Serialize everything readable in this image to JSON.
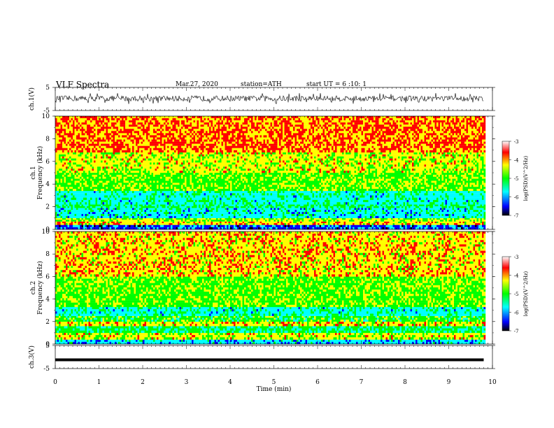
{
  "header": {
    "title": "VLF Spectra",
    "date": "Mar.27, 2020",
    "station": "station=ATH",
    "start": "start UT = 6 :10: 1"
  },
  "chart_data": [
    {
      "type": "line",
      "panel": "ch1-waveform",
      "ylabel": "ch.1(V)",
      "ylim": [
        -5,
        5
      ],
      "y_ticks": [
        "5",
        "-5"
      ],
      "x_range_min": [
        0,
        9.8
      ],
      "baseline_v": 0.2,
      "typical_amplitude_v": 1.2,
      "spike_amplitude_v": 2.5
    },
    {
      "type": "heatmap",
      "panel": "ch1-spectrogram",
      "ylabel": "Frequency (kHz)",
      "channel_label": "ch.1",
      "ylim": [
        0,
        10
      ],
      "y_ticks": [
        "0",
        "2",
        "4",
        "6",
        "8",
        "10"
      ],
      "x_range_min": [
        0,
        9.8
      ],
      "colorbar": {
        "label": "log(PSD)(V^2/Hz)",
        "range": [
          -7,
          -3
        ],
        "ticks": [
          "-3",
          "-4",
          "-5",
          "-6",
          "-7"
        ]
      },
      "bands": [
        {
          "f": [
            0,
            0.4
          ],
          "log_psd": -6.3
        },
        {
          "f": [
            0.4,
            0.7
          ],
          "log_psd": -4.2
        },
        {
          "f": [
            0.7,
            1.0
          ],
          "log_psd": -4.6
        },
        {
          "f": [
            1.0,
            1.9
          ],
          "log_psd": -5.7
        },
        {
          "f": [
            1.9,
            2.2
          ],
          "log_psd": -5.3
        },
        {
          "f": [
            2.2,
            3.4
          ],
          "log_psd": -5.6
        },
        {
          "f": [
            3.4,
            5.0
          ],
          "log_psd": -4.8
        },
        {
          "f": [
            5.0,
            6.8
          ],
          "log_psd": -4.4
        },
        {
          "f": [
            6.8,
            10.0
          ],
          "log_psd": -3.9
        }
      ]
    },
    {
      "type": "heatmap",
      "panel": "ch2-spectrogram",
      "ylabel": "Frequency (kHz)",
      "channel_label": "ch.2",
      "ylim": [
        0,
        10
      ],
      "y_ticks": [
        "0",
        "2",
        "4",
        "6",
        "8",
        "10"
      ],
      "x_range_min": [
        0,
        9.8
      ],
      "colorbar": {
        "label": "log(PSD)(V^2/Hz)",
        "range": [
          -7,
          -3
        ],
        "ticks": [
          "-3",
          "-4",
          "-5",
          "-6",
          "-7"
        ]
      },
      "bands": [
        {
          "f": [
            0,
            0.4
          ],
          "log_psd": -5.8
        },
        {
          "f": [
            0.4,
            1.0
          ],
          "log_psd": -4.4
        },
        {
          "f": [
            1.0,
            1.6
          ],
          "log_psd": -5.2
        },
        {
          "f": [
            1.6,
            2.0
          ],
          "log_psd": -4.3
        },
        {
          "f": [
            2.0,
            2.5
          ],
          "log_psd": -5.0
        },
        {
          "f": [
            2.5,
            3.3
          ],
          "log_psd": -5.6
        },
        {
          "f": [
            3.3,
            6.0
          ],
          "log_psd": -4.8
        },
        {
          "f": [
            6.0,
            10.0
          ],
          "log_psd": -4.2
        }
      ]
    },
    {
      "type": "line",
      "panel": "ch3-waveform",
      "ylabel": "ch.3(V)",
      "ylim": [
        -5,
        5
      ],
      "y_ticks": [
        "5",
        "-5"
      ],
      "x_range_min": [
        0,
        9.8
      ],
      "baseline_v": -1.2
    }
  ],
  "xaxis": {
    "label": "Time (min)",
    "range": [
      0,
      10
    ],
    "ticks": [
      "0",
      "1",
      "2",
      "3",
      "4",
      "5",
      "6",
      "7",
      "8",
      "9",
      "10"
    ]
  },
  "colors": {
    "scale": [
      "#000000",
      "#0000ff",
      "#00ffff",
      "#00ff00",
      "#ffff00",
      "#ff0000",
      "#ffffff"
    ]
  }
}
